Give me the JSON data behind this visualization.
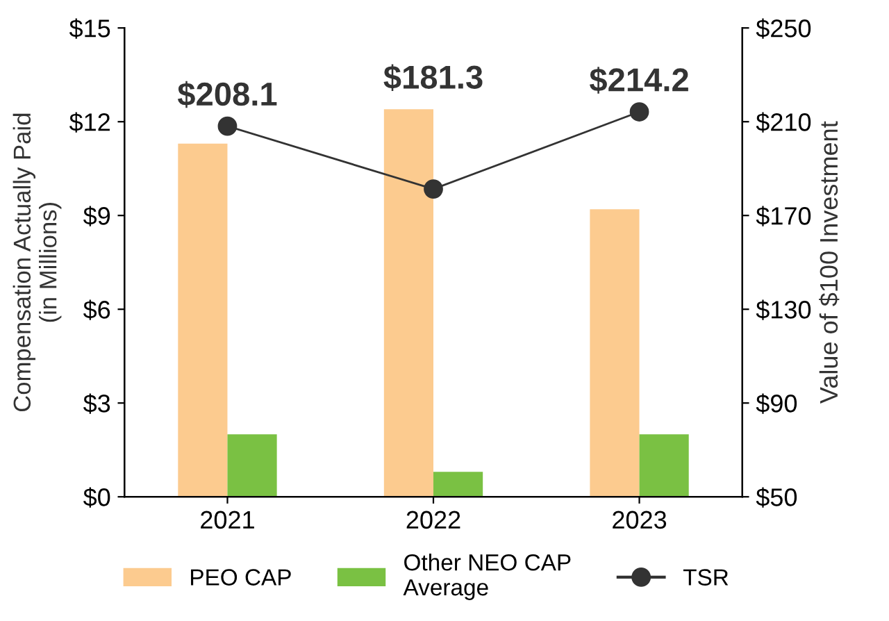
{
  "chart_data": {
    "type": "bar",
    "categories": [
      "2021",
      "2022",
      "2023"
    ],
    "ylabel": "Compensation Actually Paid\n(in Millions)",
    "y2label": "Value of $100 Investment",
    "ylim": [
      0,
      15
    ],
    "yticks": [
      {
        "value": 0,
        "label": "$0"
      },
      {
        "value": 3,
        "label": "$3"
      },
      {
        "value": 6,
        "label": "$6"
      },
      {
        "value": 9,
        "label": "$9"
      },
      {
        "value": 12,
        "label": "$12"
      },
      {
        "value": 15,
        "label": "$15"
      }
    ],
    "y2lim": [
      50,
      250
    ],
    "y2ticks": [
      {
        "value": 50,
        "label": "$50"
      },
      {
        "value": 90,
        "label": "$90"
      },
      {
        "value": 130,
        "label": "$130"
      },
      {
        "value": 170,
        "label": "$170"
      },
      {
        "value": 210,
        "label": "$210"
      },
      {
        "value": 250,
        "label": "$250"
      }
    ],
    "series": [
      {
        "name": "PEO CAP",
        "color": "#fccb8f",
        "values": [
          11.3,
          12.4,
          9.2
        ]
      },
      {
        "name": "Other NEO CAP\nAverage",
        "color": "#7ac143",
        "values": [
          2.0,
          0.8,
          2.0
        ]
      },
      {
        "name": "TSR",
        "type": "line",
        "axis": "y2",
        "color": "#333333",
        "marker": "circle",
        "values": [
          208.1,
          181.3,
          214.2
        ],
        "value_labels": [
          "$208.1",
          "$181.3",
          "$214.2"
        ]
      }
    ],
    "legend": "bottom",
    "grid": false
  }
}
